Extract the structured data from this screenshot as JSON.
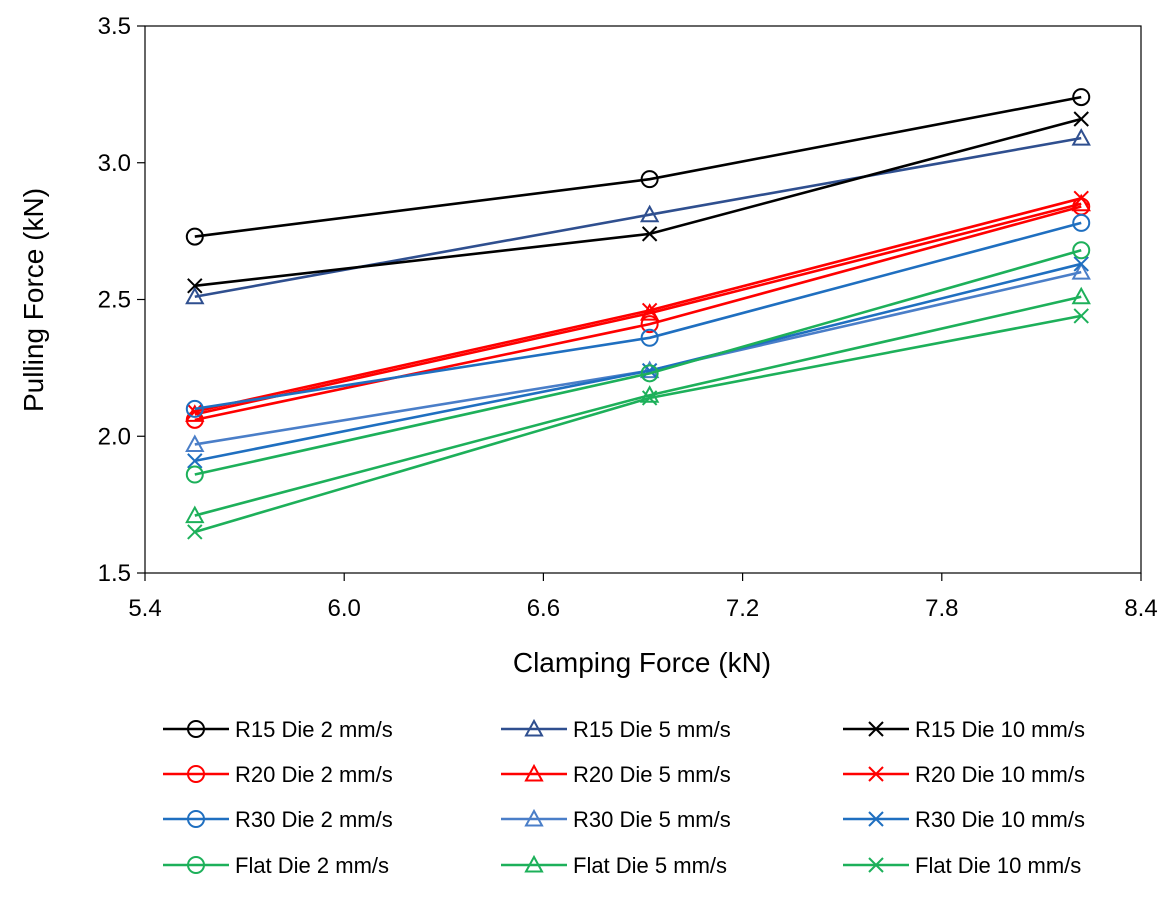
{
  "chart_data": {
    "type": "line",
    "xlabel": "Clamping Force (kN)",
    "ylabel": "Pulling Force (kN)",
    "xlim": [
      5.4,
      8.4
    ],
    "ylim": [
      1.5,
      3.5
    ],
    "xticks": [
      5.4,
      6.0,
      6.6,
      7.2,
      7.8,
      8.4
    ],
    "xtick_labels": [
      "5.4",
      "6.0",
      "6.6",
      "7.2",
      "7.8",
      "8.4"
    ],
    "yticks": [
      1.5,
      2.0,
      2.5,
      3.0,
      3.5
    ],
    "ytick_labels": [
      "1.5",
      "2.0",
      "2.5",
      "3.0",
      "3.5"
    ],
    "grid": false,
    "legend_position": "bottom",
    "x": [
      5.55,
      6.92,
      8.22
    ],
    "series": [
      {
        "name": "R15 Die 2 mm/s",
        "marker": "circle",
        "color": "#000000",
        "values": [
          2.73,
          2.94,
          3.24
        ]
      },
      {
        "name": "R15 Die 5 mm/s",
        "marker": "triangle",
        "color": "#2F4F8F",
        "values": [
          2.51,
          2.81,
          3.09
        ]
      },
      {
        "name": "R15 Die 10 mm/s",
        "marker": "x",
        "color": "#000000",
        "values": [
          2.55,
          2.74,
          3.16
        ]
      },
      {
        "name": "R20 Die 2 mm/s",
        "marker": "circle",
        "color": "#FF0000",
        "values": [
          2.06,
          2.41,
          2.84
        ]
      },
      {
        "name": "R20 Die 5 mm/s",
        "marker": "triangle",
        "color": "#FF0000",
        "values": [
          2.08,
          2.45,
          2.85
        ]
      },
      {
        "name": "R20 Die 10 mm/s",
        "marker": "x",
        "color": "#FF0000",
        "values": [
          2.09,
          2.46,
          2.87
        ]
      },
      {
        "name": "R30 Die 2 mm/s",
        "marker": "circle",
        "color": "#1F6FC0",
        "values": [
          2.1,
          2.36,
          2.78
        ]
      },
      {
        "name": "R30 Die 5 mm/s",
        "marker": "triangle",
        "color": "#4A7EC8",
        "values": [
          1.97,
          2.24,
          2.6
        ]
      },
      {
        "name": "R30 Die 10 mm/s",
        "marker": "x",
        "color": "#1F6FC0",
        "values": [
          1.91,
          2.24,
          2.63
        ]
      },
      {
        "name": "Flat Die 2 mm/s",
        "marker": "circle",
        "color": "#1DB05A",
        "values": [
          1.86,
          2.23,
          2.68
        ]
      },
      {
        "name": "Flat Die 5 mm/s",
        "marker": "triangle",
        "color": "#1DB05A",
        "values": [
          1.71,
          2.15,
          2.51
        ]
      },
      {
        "name": "Flat Die 10 mm/s",
        "marker": "x",
        "color": "#1DB05A",
        "values": [
          1.65,
          2.14,
          2.44
        ]
      }
    ]
  }
}
